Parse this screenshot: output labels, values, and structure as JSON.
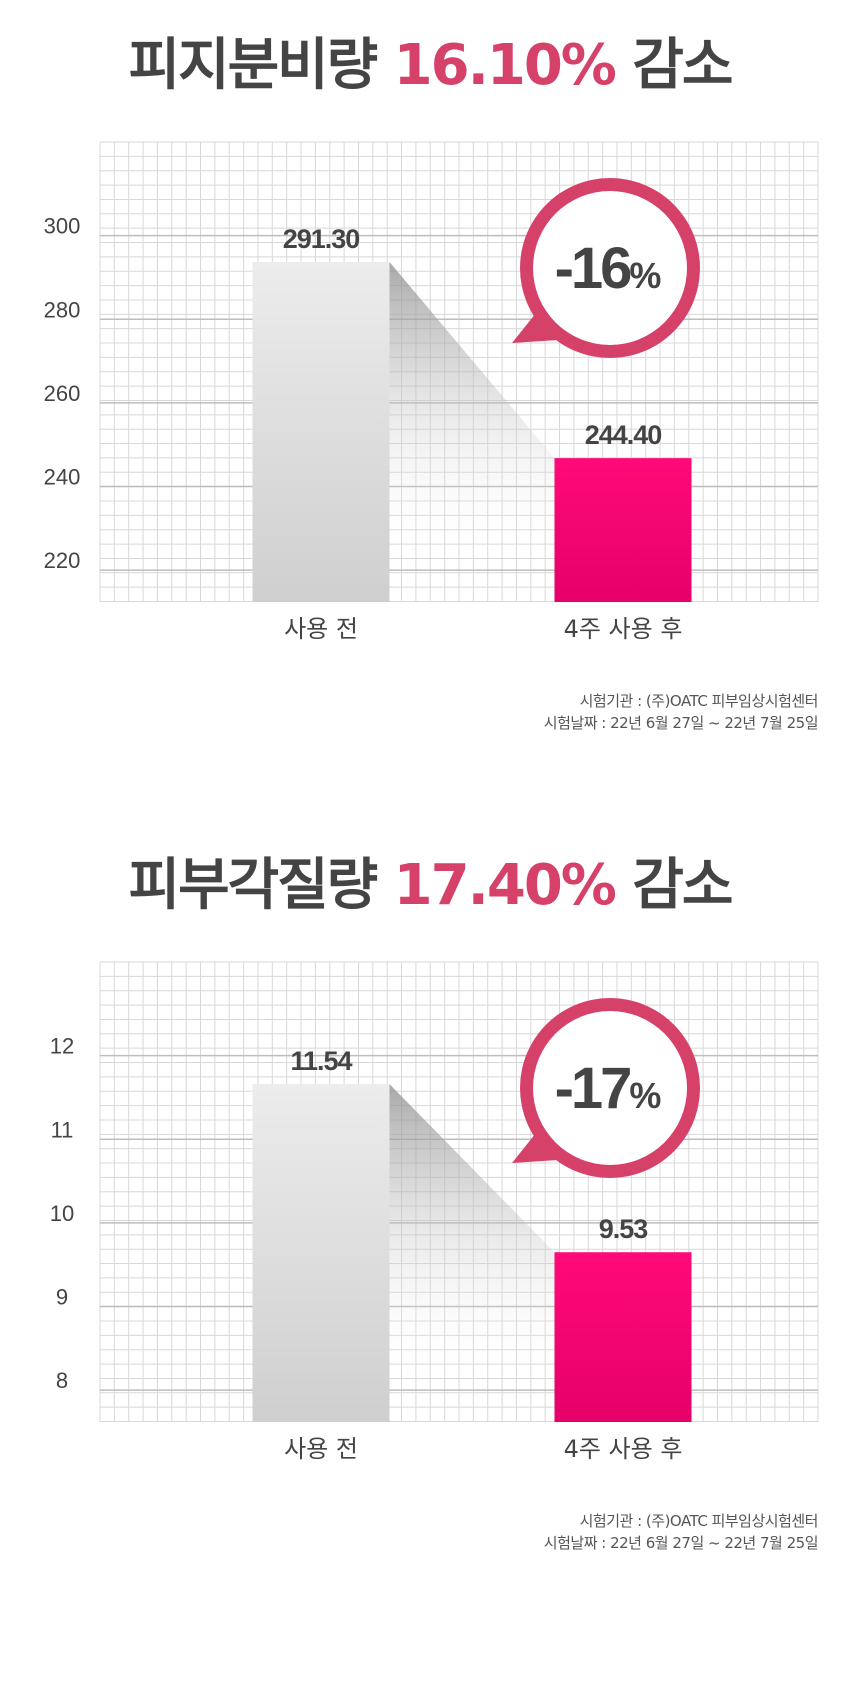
{
  "sections": [
    {
      "title_prefix": "피지분비량",
      "title_pct": "16.10%",
      "title_suffix": "감소",
      "badge_text": "-16",
      "badge_unit": "%",
      "source_line1": "시험기관 : (주)OATC 피부임상시험센터",
      "source_line2": "시험날짜 : 22년 6월 27일 ~ 22년 7월 25일",
      "chart_data": {
        "type": "bar",
        "categories": [
          "사용 전",
          "4주 사용 후"
        ],
        "values": [
          291.3,
          244.4
        ],
        "value_labels": [
          "291.30",
          "244.40"
        ],
        "yticks": [
          220,
          240,
          260,
          280,
          300
        ],
        "ylim": [
          210,
          320
        ],
        "title": "피지분비량 16.10% 감소",
        "change_label": "-16%",
        "colors": [
          "#d9d9d9",
          "#f5006c"
        ]
      }
    },
    {
      "title_prefix": "피부각질량",
      "title_pct": "17.40%",
      "title_suffix": "감소",
      "badge_text": "-17",
      "badge_unit": "%",
      "source_line1": "시험기관 : (주)OATC 피부임상시험센터",
      "source_line2": "시험날짜 : 22년 6월 27일 ~ 22년 7월 25일",
      "chart_data": {
        "type": "bar",
        "categories": [
          "사용 전",
          "4주 사용 후"
        ],
        "values": [
          11.54,
          9.53
        ],
        "value_labels": [
          "11.54",
          "9.53"
        ],
        "yticks": [
          8,
          9,
          10,
          11,
          12
        ],
        "ylim": [
          7.5,
          13.0
        ],
        "title": "피부각질량 17.40% 감소",
        "change_label": "-17%",
        "colors": [
          "#d9d9d9",
          "#f5006c"
        ]
      }
    }
  ],
  "colors": {
    "accent": "#d6416a",
    "bar_after": "#f5006c",
    "bar_before": "#d9d9d9",
    "text": "#444444"
  }
}
